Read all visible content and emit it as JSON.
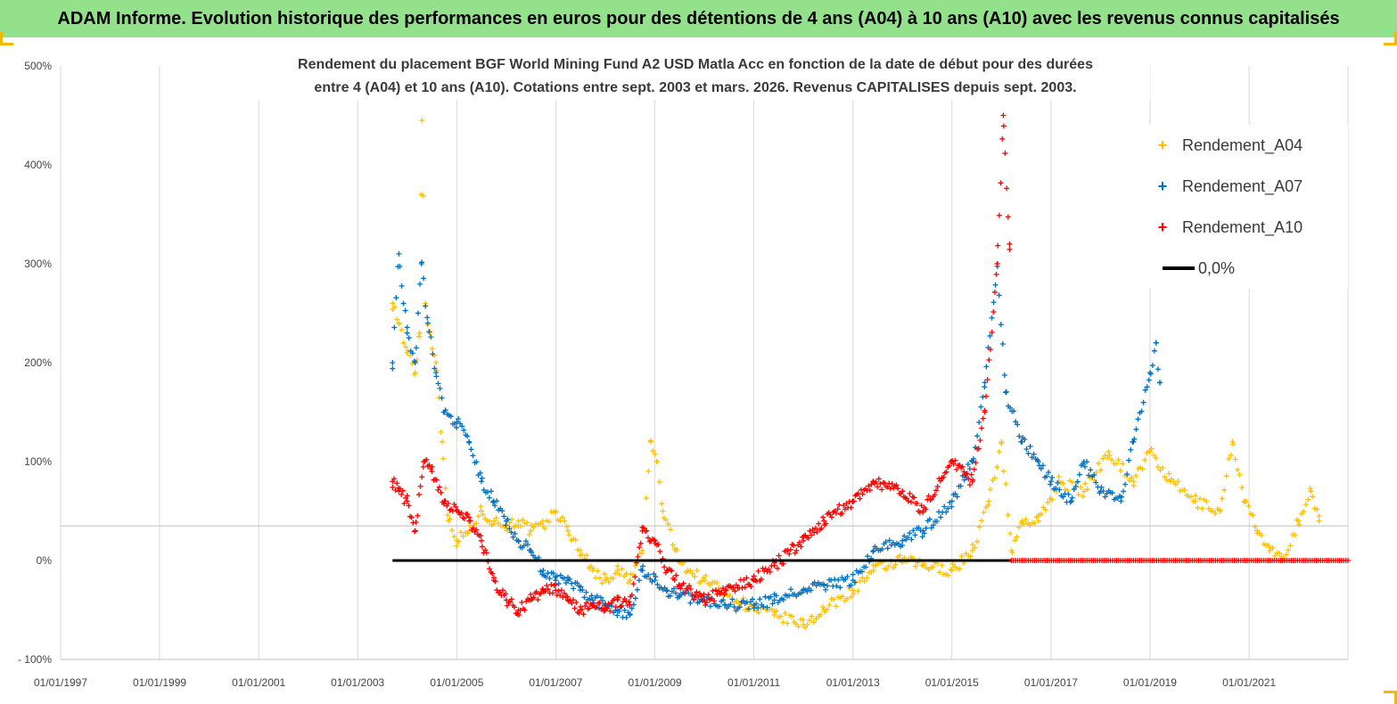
{
  "header": {
    "banner_title": "ADAM Informe. Evolution historique des performances en euros pour des détentions de 4 ans (A04) à 10 ans (A10) avec les revenus connus capitalisés"
  },
  "chart_data": {
    "type": "scatter",
    "title": "Rendement du placement BGF World Mining Fund A2 USD Matla Acc en fonction de la date de début pour des durées",
    "subtitle": "entre 4 (A04) et 10 ans (A10). Cotations entre sept. 2003 et mars. 2026. Revenus CAPITALISES depuis sept. 2003.",
    "xlabel": "",
    "ylabel": "",
    "x_range": [
      "1997-01-01",
      "2022-12-31"
    ],
    "ylim": [
      -100,
      500
    ],
    "y_ticks": [
      500,
      400,
      300,
      200,
      100,
      0,
      -100
    ],
    "y_tick_labels": [
      "500%",
      "400%",
      "300%",
      "200%",
      "100%",
      "0%",
      "- 100%"
    ],
    "x_ticks": [
      "1997-01-01",
      "1999-01-01",
      "2001-01-01",
      "2003-01-01",
      "2005-01-01",
      "2007-01-01",
      "2009-01-01",
      "2011-01-01",
      "2013-01-01",
      "2015-01-01",
      "2017-01-01",
      "2019-01-01",
      "2021-01-01"
    ],
    "x_tick_labels": [
      "01/01/1997",
      "01/01/1999",
      "01/01/2001",
      "01/01/2003",
      "01/01/2005",
      "01/01/2007",
      "01/01/2009",
      "01/01/2011",
      "01/01/2013",
      "01/01/2015",
      "01/01/2017",
      "01/01/2019",
      "01/01/2021"
    ],
    "grid": "vertical",
    "legend_position": "top-right",
    "series": [
      {
        "name": "Rendement_A04",
        "color": "#ffc000",
        "marker": "+",
        "points": [
          [
            "2003-09-15",
            260
          ],
          [
            "2003-11-01",
            240
          ],
          [
            "2004-01-01",
            210
          ],
          [
            "2004-03-01",
            190
          ],
          [
            "2004-04-01",
            230
          ],
          [
            "2004-04-20",
            445
          ],
          [
            "2004-05-15",
            260
          ],
          [
            "2004-06-15",
            230
          ],
          [
            "2004-08-01",
            200
          ],
          [
            "2004-09-15",
            120
          ],
          [
            "2004-11-01",
            40
          ],
          [
            "2005-01-01",
            20
          ],
          [
            "2005-04-01",
            30
          ],
          [
            "2005-07-01",
            50
          ],
          [
            "2005-10-01",
            40
          ],
          [
            "2006-01-01",
            35
          ],
          [
            "2006-04-01",
            40
          ],
          [
            "2006-07-01",
            30
          ],
          [
            "2006-10-01",
            35
          ],
          [
            "2007-01-01",
            50
          ],
          [
            "2007-04-01",
            30
          ],
          [
            "2007-07-01",
            10
          ],
          [
            "2007-10-01",
            -10
          ],
          [
            "2008-01-01",
            -20
          ],
          [
            "2008-04-01",
            -10
          ],
          [
            "2008-07-01",
            -20
          ],
          [
            "2008-10-01",
            10
          ],
          [
            "2008-12-01",
            120
          ],
          [
            "2009-01-15",
            100
          ],
          [
            "2009-03-01",
            50
          ],
          [
            "2009-06-01",
            10
          ],
          [
            "2009-09-01",
            -10
          ],
          [
            "2010-01-01",
            -20
          ],
          [
            "2010-06-01",
            -30
          ],
          [
            "2011-01-01",
            -50
          ],
          [
            "2011-06-01",
            -55
          ],
          [
            "2012-01-01",
            -65
          ],
          [
            "2012-06-01",
            -50
          ],
          [
            "2013-01-01",
            -30
          ],
          [
            "2013-06-01",
            -10
          ],
          [
            "2014-01-01",
            0
          ],
          [
            "2014-06-01",
            -5
          ],
          [
            "2015-01-01",
            -10
          ],
          [
            "2015-06-01",
            10
          ],
          [
            "2015-10-01",
            60
          ],
          [
            "2016-01-01",
            120
          ],
          [
            "2016-03-15",
            10
          ],
          [
            "2016-06-01",
            40
          ],
          [
            "2016-10-01",
            40
          ],
          [
            "2017-03-01",
            80
          ],
          [
            "2017-09-01",
            70
          ],
          [
            "2018-03-01",
            110
          ],
          [
            "2018-09-01",
            80
          ],
          [
            "2019-01-01",
            110
          ],
          [
            "2019-06-01",
            80
          ],
          [
            "2019-12-01",
            60
          ],
          [
            "2020-06-01",
            50
          ],
          [
            "2020-09-01",
            120
          ],
          [
            "2020-12-01",
            60
          ],
          [
            "2021-03-01",
            30
          ],
          [
            "2021-06-01",
            10
          ],
          [
            "2021-09-01",
            0
          ],
          [
            "2022-01-01",
            40
          ],
          [
            "2022-04-01",
            70
          ],
          [
            "2022-06-01",
            40
          ]
        ]
      },
      {
        "name": "Rendement_A07",
        "color": "#0070c0",
        "marker": "+",
        "points": [
          [
            "2003-09-15",
            200
          ],
          [
            "2003-11-01",
            310
          ],
          [
            "2004-01-01",
            230
          ],
          [
            "2004-03-01",
            200
          ],
          [
            "2004-04-15",
            300
          ],
          [
            "2004-06-01",
            240
          ],
          [
            "2004-08-01",
            190
          ],
          [
            "2004-10-01",
            150
          ],
          [
            "2005-01-01",
            140
          ],
          [
            "2005-04-01",
            120
          ],
          [
            "2005-07-01",
            80
          ],
          [
            "2005-10-01",
            60
          ],
          [
            "2006-01-01",
            40
          ],
          [
            "2006-04-01",
            20
          ],
          [
            "2006-07-01",
            10
          ],
          [
            "2006-10-01",
            -10
          ],
          [
            "2007-01-01",
            -20
          ],
          [
            "2007-04-01",
            -20
          ],
          [
            "2007-07-01",
            -30
          ],
          [
            "2007-10-01",
            -40
          ],
          [
            "2008-01-01",
            -45
          ],
          [
            "2008-04-01",
            -50
          ],
          [
            "2008-07-01",
            -55
          ],
          [
            "2008-10-01",
            -10
          ],
          [
            "2009-01-01",
            -20
          ],
          [
            "2009-04-01",
            -30
          ],
          [
            "2009-07-01",
            -35
          ],
          [
            "2010-01-01",
            -40
          ],
          [
            "2010-06-01",
            -45
          ],
          [
            "2011-01-01",
            -45
          ],
          [
            "2011-06-01",
            -40
          ],
          [
            "2012-01-01",
            -30
          ],
          [
            "2012-06-01",
            -25
          ],
          [
            "2013-01-01",
            -20
          ],
          [
            "2013-06-01",
            10
          ],
          [
            "2014-01-01",
            20
          ],
          [
            "2014-06-01",
            30
          ],
          [
            "2015-01-01",
            60
          ],
          [
            "2015-06-01",
            100
          ],
          [
            "2015-09-01",
            180
          ],
          [
            "2015-12-01",
            300
          ],
          [
            "2016-02-01",
            170
          ],
          [
            "2016-06-01",
            120
          ],
          [
            "2016-10-01",
            100
          ],
          [
            "2017-01-01",
            80
          ],
          [
            "2017-06-01",
            60
          ],
          [
            "2017-09-01",
            100
          ],
          [
            "2018-01-01",
            70
          ],
          [
            "2018-06-01",
            60
          ],
          [
            "2018-09-01",
            120
          ],
          [
            "2019-01-01",
            190
          ],
          [
            "2019-02-15",
            220
          ],
          [
            "2019-03-15",
            180
          ]
        ]
      },
      {
        "name": "Rendement_A10",
        "color": "#ff0000",
        "marker": "+",
        "points": [
          [
            "2003-09-15",
            80
          ],
          [
            "2003-11-01",
            70
          ],
          [
            "2004-01-01",
            60
          ],
          [
            "2004-03-01",
            30
          ],
          [
            "2004-05-01",
            100
          ],
          [
            "2004-07-01",
            90
          ],
          [
            "2004-10-01",
            60
          ],
          [
            "2005-01-01",
            50
          ],
          [
            "2005-04-01",
            40
          ],
          [
            "2005-07-01",
            20
          ],
          [
            "2005-10-01",
            -20
          ],
          [
            "2006-01-01",
            -40
          ],
          [
            "2006-04-01",
            -50
          ],
          [
            "2006-07-01",
            -40
          ],
          [
            "2006-10-01",
            -30
          ],
          [
            "2007-01-01",
            -30
          ],
          [
            "2007-04-01",
            -40
          ],
          [
            "2007-07-01",
            -50
          ],
          [
            "2007-10-01",
            -45
          ],
          [
            "2008-01-01",
            -50
          ],
          [
            "2008-04-01",
            -40
          ],
          [
            "2008-07-01",
            -45
          ],
          [
            "2008-10-01",
            30
          ],
          [
            "2009-01-01",
            20
          ],
          [
            "2009-04-01",
            -10
          ],
          [
            "2009-07-01",
            -25
          ],
          [
            "2010-01-01",
            -40
          ],
          [
            "2010-06-01",
            -30
          ],
          [
            "2011-01-01",
            -20
          ],
          [
            "2011-06-01",
            -5
          ],
          [
            "2012-01-01",
            20
          ],
          [
            "2012-06-01",
            40
          ],
          [
            "2013-01-01",
            60
          ],
          [
            "2013-06-01",
            80
          ],
          [
            "2014-01-01",
            70
          ],
          [
            "2014-06-01",
            50
          ],
          [
            "2015-01-01",
            100
          ],
          [
            "2015-06-01",
            80
          ],
          [
            "2015-09-01",
            150
          ],
          [
            "2015-12-01",
            300
          ],
          [
            "2016-01-15",
            450
          ],
          [
            "2016-03-01",
            320
          ]
        ]
      },
      {
        "name": "0,0%",
        "color": "#000000",
        "marker": "line",
        "points": [
          [
            "2003-09-15",
            0
          ],
          [
            "2016-03-15",
            0
          ]
        ]
      }
    ],
    "annotations": [
      {
        "text": "Rendement_A10 values at 0% from 2016-03-15 to 2022-12-31",
        "color": "#ff0000"
      }
    ]
  },
  "legend": {
    "items": [
      {
        "label": "Rendement_A04",
        "color": "#ffc000",
        "symbol": "+"
      },
      {
        "label": "Rendement_A07",
        "color": "#0070c0",
        "symbol": "+"
      },
      {
        "label": "Rendement_A10",
        "color": "#ff0000",
        "symbol": "+"
      },
      {
        "label": "0,0%",
        "color": "#000000",
        "symbol": "line"
      }
    ]
  }
}
